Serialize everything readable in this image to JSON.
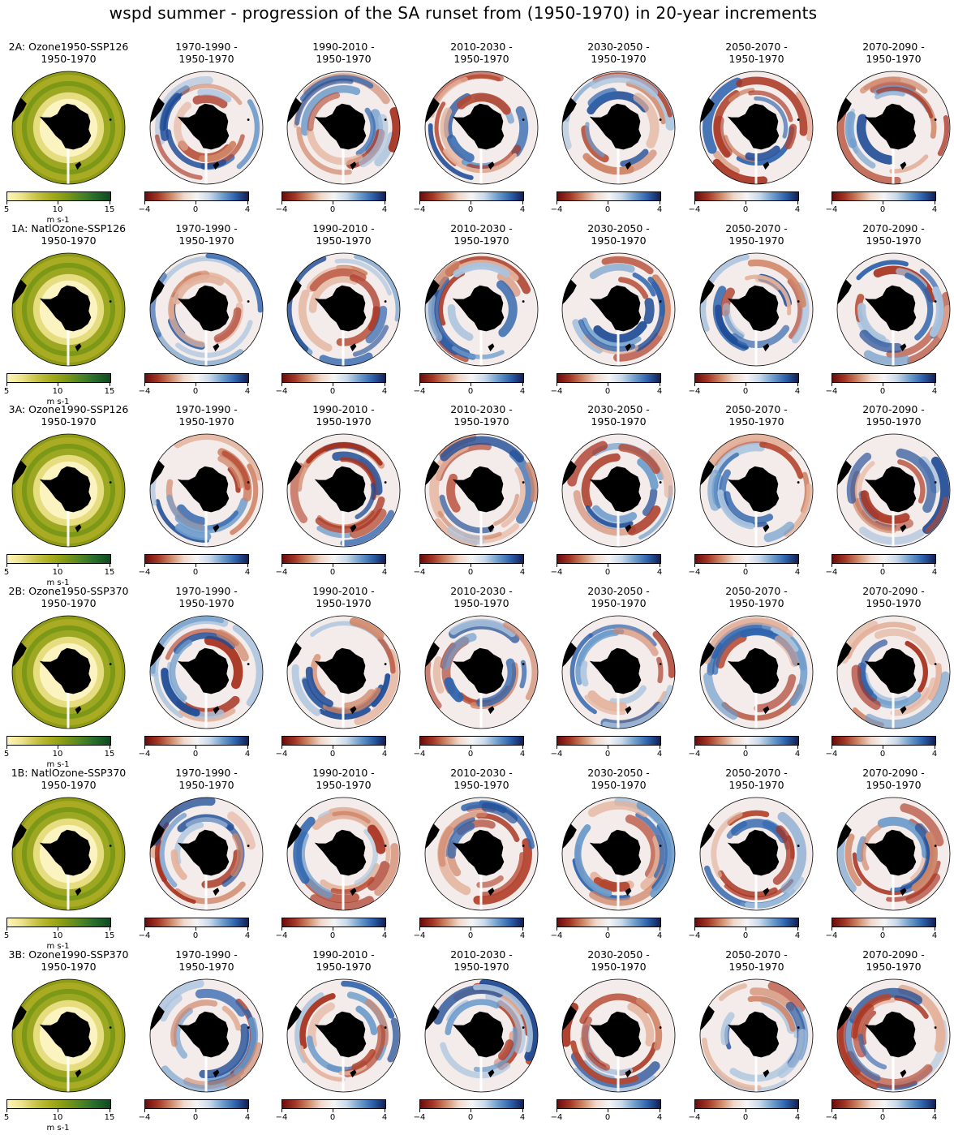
{
  "title": "wspd summer - progression of the SA runset from (1950-1970) in 20-year increments",
  "rows": [
    {
      "label": "2A: Ozone1950-SSP126\n1950-1970"
    },
    {
      "label": "1A: NatlOzone-SSP126\n1950-1970"
    },
    {
      "label": "3A: Ozone1990-SSP126\n1950-1970"
    },
    {
      "label": "2B: Ozone1950-SSP370\n1950-1970"
    },
    {
      "label": "1B: NatlOzone-SSP370\n1950-1970"
    },
    {
      "label": "3B: Ozone1990-SSP370\n1950-1970"
    }
  ],
  "diff_titles": [
    "1970-1990 -\n1950-1970",
    "1990-2010 -\n1950-1970",
    "2010-2030 -\n1950-1970",
    "2030-2050 -\n1950-1970",
    "2050-2070 -\n1950-1970",
    "2070-2090 -\n1950-1970"
  ],
  "abs_colorbar": {
    "ticks": [
      "5",
      "10",
      "15"
    ],
    "unit": "m s-1",
    "cmap": [
      "#fdf6b8",
      "#a5ab1b",
      "#0d4a1e"
    ]
  },
  "diff_colorbar": {
    "ticks": [
      "−4",
      "0",
      "4"
    ],
    "cmap": [
      "#6a0b0b",
      "#f5f5f5",
      "#131e54"
    ]
  },
  "colors": {
    "land": "#000000",
    "abs_low": "#fffbd7",
    "abs_mid": "#b4b52a",
    "diff_neg": "#b4462f",
    "diff_pos": "#2f64ad"
  }
}
